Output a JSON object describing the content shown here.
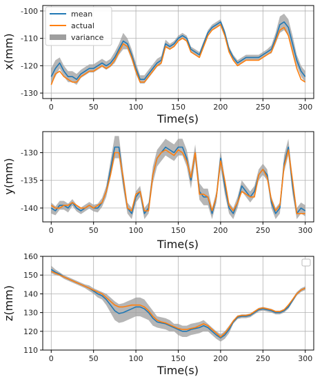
{
  "chart_data": [
    {
      "type": "line",
      "xlabel": "Time(s)",
      "ylabel": "x(mm)",
      "xlim": [
        -10,
        310
      ],
      "ylim": [
        -132,
        -98
      ],
      "xticks": [
        0,
        50,
        100,
        150,
        200,
        250,
        300
      ],
      "yticks": [
        -130,
        -120,
        -110,
        -100
      ],
      "grid": true,
      "legend": {
        "placement": "top-left",
        "entries": [
          "mean",
          "actual",
          "variance"
        ]
      },
      "colors": {
        "mean": "#1f77b4",
        "actual": "#ff7f0e",
        "variance": "#9e9e9e"
      },
      "x": [
        0,
        5,
        10,
        15,
        20,
        25,
        30,
        35,
        40,
        45,
        50,
        55,
        60,
        65,
        70,
        75,
        80,
        85,
        90,
        95,
        100,
        105,
        110,
        115,
        120,
        125,
        130,
        135,
        140,
        145,
        150,
        155,
        160,
        165,
        170,
        175,
        180,
        185,
        190,
        195,
        200,
        205,
        210,
        215,
        220,
        225,
        230,
        235,
        240,
        245,
        250,
        255,
        260,
        265,
        270,
        275,
        280,
        285,
        290,
        295,
        300
      ],
      "series": [
        {
          "name": "mean",
          "values": [
            -124,
            -121,
            -119,
            -122,
            -124,
            -124,
            -125,
            -123,
            -122,
            -121,
            -121,
            -120,
            -119,
            -120,
            -119,
            -117,
            -114,
            -111,
            -112,
            -116,
            -121,
            -125,
            -125,
            -123,
            -121,
            -119,
            -118,
            -112,
            -113,
            -112,
            -110,
            -109,
            -110,
            -114,
            -115,
            -116,
            -112,
            -108,
            -106,
            -105,
            -104,
            -108,
            -114,
            -117,
            -119,
            -118,
            -117,
            -117,
            -117,
            -117,
            -116,
            -115,
            -114,
            -110,
            -105,
            -104,
            -106,
            -112,
            -118,
            -122,
            -124
          ]
        },
        {
          "name": "actual",
          "values": [
            -127,
            -123,
            -122,
            -124,
            -125,
            -126,
            -126,
            -124,
            -123,
            -122,
            -122,
            -121,
            -120,
            -121,
            -120,
            -118,
            -115,
            -112,
            -113,
            -117,
            -122,
            -126,
            -126,
            -124,
            -122,
            -120,
            -119,
            -113,
            -114,
            -113,
            -111,
            -110,
            -111,
            -115,
            -116,
            -117,
            -113,
            -109,
            -107,
            -106,
            -105,
            -109,
            -115,
            -118,
            -120,
            -119,
            -118,
            -118,
            -118,
            -118,
            -117,
            -116,
            -115,
            -111,
            -107,
            -106,
            -109,
            -115,
            -121,
            -125,
            -126
          ]
        },
        {
          "name": "variance",
          "values": [
            3,
            3,
            2,
            2,
            2,
            2,
            2,
            1.5,
            1.5,
            1.5,
            1.5,
            1.5,
            1.5,
            1.5,
            1.5,
            2,
            2,
            3,
            2,
            2,
            2,
            1.5,
            1.5,
            1.5,
            1.5,
            1.5,
            1.5,
            1.5,
            1,
            1,
            1,
            1,
            1,
            1,
            1,
            1,
            1,
            1,
            1,
            1,
            1,
            1,
            1,
            1,
            1,
            1,
            1,
            1,
            1,
            1,
            1,
            1,
            1.5,
            2,
            3,
            3,
            3,
            3,
            2,
            2,
            2
          ]
        }
      ]
    },
    {
      "type": "line",
      "xlabel": "Time(s)",
      "ylabel": "y(mm)",
      "xlim": [
        -10,
        310
      ],
      "ylim": [
        -142.5,
        -126.2
      ],
      "xticks": [
        0,
        50,
        100,
        150,
        200,
        250,
        300
      ],
      "yticks": [
        -140,
        -135,
        -130
      ],
      "grid": true,
      "colors": {
        "mean": "#1f77b4",
        "actual": "#ff7f0e",
        "variance": "#9e9e9e"
      },
      "x": [
        0,
        5,
        10,
        15,
        20,
        25,
        30,
        35,
        40,
        45,
        50,
        55,
        60,
        65,
        70,
        75,
        80,
        85,
        90,
        95,
        100,
        105,
        110,
        115,
        120,
        125,
        130,
        135,
        140,
        145,
        150,
        155,
        160,
        165,
        170,
        175,
        180,
        185,
        190,
        195,
        200,
        205,
        210,
        215,
        220,
        225,
        230,
        235,
        240,
        245,
        250,
        255,
        260,
        265,
        270,
        275,
        280,
        285,
        290,
        295,
        300
      ],
      "series": [
        {
          "name": "mean",
          "values": [
            -140,
            -140.5,
            -139.5,
            -139.5,
            -140,
            -139,
            -140,
            -140.5,
            -140,
            -139.5,
            -140,
            -140,
            -139,
            -137,
            -133,
            -129,
            -129,
            -135,
            -140,
            -141,
            -138,
            -137,
            -141,
            -140,
            -134,
            -131,
            -130,
            -129,
            -129.5,
            -130,
            -129,
            -129,
            -131,
            -135,
            -130,
            -137,
            -138,
            -138,
            -141,
            -138,
            -131,
            -136,
            -140,
            -141,
            -139,
            -136,
            -137,
            -138,
            -137,
            -134,
            -133,
            -134,
            -139,
            -141,
            -140,
            -132,
            -129,
            -136,
            -141,
            -140,
            -140.5
          ]
        },
        {
          "name": "actual",
          "values": [
            -139.5,
            -140,
            -140,
            -139.5,
            -139.5,
            -139,
            -139.5,
            -140,
            -140,
            -139.5,
            -140,
            -139.5,
            -139,
            -137,
            -134,
            -130,
            -130,
            -134.5,
            -140,
            -140.5,
            -137.5,
            -137,
            -140.5,
            -140.5,
            -134,
            -131,
            -130,
            -129.5,
            -130,
            -130.5,
            -129.5,
            -130,
            -131.5,
            -134.5,
            -130,
            -137.5,
            -137.5,
            -138,
            -140.5,
            -138,
            -131.5,
            -135,
            -139.5,
            -140.5,
            -139,
            -137,
            -137.5,
            -138,
            -138,
            -134,
            -133,
            -134.5,
            -138.5,
            -140.5,
            -139.5,
            -132.5,
            -129.5,
            -135,
            -141,
            -141,
            -141
          ]
        },
        {
          "name": "variance",
          "values": [
            1,
            0.8,
            0.8,
            0.8,
            0.8,
            0.6,
            0.6,
            0.6,
            0.6,
            0.6,
            0.6,
            0.8,
            0.8,
            1,
            1.5,
            2,
            2,
            1.5,
            1,
            1,
            1,
            1,
            1,
            1,
            1.5,
            1.5,
            1.5,
            1.5,
            1.5,
            1.5,
            1.5,
            1.5,
            1.5,
            1.5,
            1.5,
            1.5,
            1.5,
            1.5,
            1,
            1,
            1.5,
            1.5,
            1,
            1,
            1,
            1,
            1,
            1,
            1,
            1,
            1,
            1,
            1,
            1,
            1,
            1.5,
            1.5,
            1.5,
            1,
            1,
            1
          ]
        }
      ]
    },
    {
      "type": "line",
      "xlabel": "Time(s)",
      "ylabel": "z(mm)",
      "xlim": [
        -10,
        310
      ],
      "ylim": [
        110,
        160
      ],
      "xticks": [
        0,
        50,
        100,
        150,
        200,
        250,
        300
      ],
      "yticks": [
        110,
        120,
        130,
        140,
        150,
        160
      ],
      "grid": true,
      "legend": {
        "placement": "top-right",
        "entries": []
      },
      "colors": {
        "mean": "#1f77b4",
        "actual": "#ff7f0e",
        "variance": "#9e9e9e"
      },
      "x": [
        0,
        5,
        10,
        15,
        20,
        25,
        30,
        35,
        40,
        45,
        50,
        55,
        60,
        65,
        70,
        75,
        80,
        85,
        90,
        95,
        100,
        105,
        110,
        115,
        120,
        125,
        130,
        135,
        140,
        145,
        150,
        155,
        160,
        165,
        170,
        175,
        180,
        185,
        190,
        195,
        200,
        205,
        210,
        215,
        220,
        225,
        230,
        235,
        240,
        245,
        250,
        255,
        260,
        265,
        270,
        275,
        280,
        285,
        290,
        295,
        300
      ],
      "series": [
        {
          "name": "mean",
          "values": [
            153,
            151.5,
            150.5,
            149,
            148,
            147,
            146,
            145,
            144,
            143,
            141.5,
            140,
            139,
            137,
            134,
            131,
            129.5,
            130,
            131,
            132,
            133,
            133,
            132,
            130,
            127,
            125,
            124.5,
            124,
            123,
            122,
            121,
            120,
            120,
            121,
            121.5,
            122,
            123,
            122,
            120,
            118,
            116.5,
            118,
            121,
            125,
            127.5,
            128,
            128,
            128.5,
            130,
            131.5,
            132,
            131.5,
            131,
            130,
            130,
            131,
            133,
            136.5,
            140,
            142,
            143
          ]
        },
        {
          "name": "actual",
          "values": [
            152,
            151,
            150,
            149,
            148,
            147,
            146,
            145,
            144,
            143,
            142,
            141,
            140,
            138,
            136,
            134,
            133,
            133,
            133.5,
            134,
            134,
            134,
            133,
            131,
            128,
            126,
            125,
            124.5,
            123.5,
            122.5,
            121.5,
            121,
            121,
            121.5,
            122,
            123,
            124,
            123,
            121,
            119,
            117,
            119,
            122,
            125.5,
            128,
            128.5,
            128.5,
            129,
            130.5,
            132,
            132.5,
            132,
            131.5,
            130.5,
            130.5,
            131.5,
            134,
            137,
            140,
            142,
            143
          ]
        },
        {
          "name": "variance",
          "values": [
            2,
            1.5,
            1,
            1,
            1,
            1,
            1,
            1,
            1,
            1.5,
            1.5,
            2,
            2,
            3,
            4,
            5,
            5,
            5,
            5,
            5,
            5,
            5,
            5,
            4,
            4,
            3,
            3,
            3,
            3,
            2,
            3,
            3,
            3,
            3,
            3,
            3,
            3,
            2,
            2,
            2,
            2,
            2,
            2,
            1,
            1,
            1,
            1,
            1,
            1,
            1,
            1,
            1,
            1,
            1,
            1,
            1,
            1,
            1,
            1,
            1,
            1
          ]
        }
      ]
    }
  ]
}
